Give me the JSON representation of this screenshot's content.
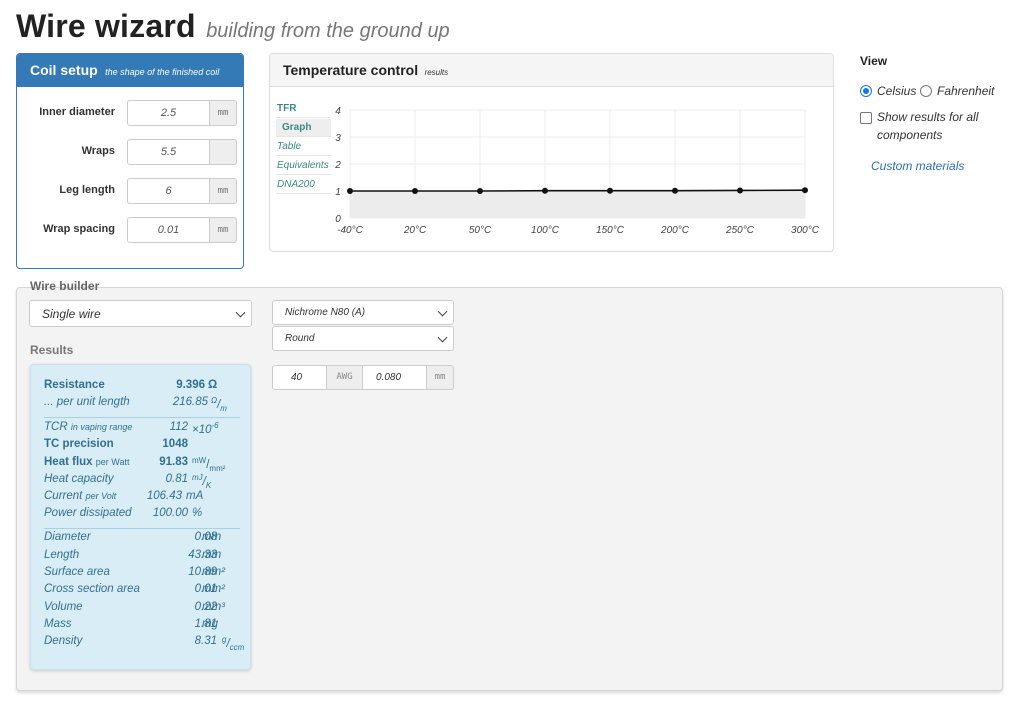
{
  "header": {
    "title": "Wire wizard",
    "subtitle": "building from the ground up"
  },
  "coil_setup": {
    "title": "Coil setup",
    "subtitle": "the shape of the finished coil",
    "fields": [
      {
        "label": "Inner diameter",
        "value": "2.5",
        "unit": "mm"
      },
      {
        "label": "Wraps",
        "value": "5.5",
        "unit": ""
      },
      {
        "label": "Leg length",
        "value": "6",
        "unit": "mm"
      },
      {
        "label": "Wrap spacing",
        "value": "0.01",
        "unit": "mm"
      }
    ]
  },
  "temperature_control": {
    "title": "Temperature control",
    "subtitle": "results",
    "tabs": [
      "TFR",
      "Graph",
      "Table",
      "Equivalents",
      "DNA200"
    ],
    "active_tab": "Graph",
    "line_color": "#111111",
    "fill_color": "#ececec"
  },
  "chart_data": {
    "type": "line",
    "categories": [
      "-40°C",
      "20°C",
      "50°C",
      "100°C",
      "150°C",
      "200°C",
      "250°C",
      "300°C"
    ],
    "values": [
      1.0,
      1.0,
      1.0,
      1.01,
      1.01,
      1.01,
      1.02,
      1.03
    ],
    "yticks": [
      "0",
      "1",
      "2",
      "3",
      "4"
    ],
    "ylim": [
      0,
      4
    ],
    "grid": true
  },
  "view": {
    "title": "View",
    "unit_options": [
      "Celsius",
      "Fahrenheit"
    ],
    "selected_unit": "Celsius",
    "show_all_label_line1": "Show results for all",
    "show_all_label_line2": "components",
    "show_all_checked": false,
    "custom_materials": "Custom materials"
  },
  "wire_builder": {
    "title": "Wire builder",
    "wire_type": "Single wire",
    "material": "Nichrome N80 (A)",
    "profile": "Round",
    "gauge": "40",
    "gauge_unit": "AWG",
    "diameter": "0.080",
    "diameter_unit": "mm"
  },
  "results": {
    "label": "Results",
    "accent_color": "#31708f",
    "background_color": "#d9edf7",
    "resistance_label": "Resistance",
    "resistance_value": "9.396",
    "resistance_unit": "Ω",
    "per_length_label": "... per unit length",
    "per_length_value": "216.85",
    "per_length_unit_num": "Ω",
    "per_length_unit_den": "m",
    "tcr_label": "TCR",
    "tcr_sub": "in vaping range",
    "tcr_value": "112",
    "tcr_unit": "×10",
    "tcr_exp": "-6",
    "tc_precision_label": "TC precision",
    "tc_precision_value": "1048",
    "heat_flux_label": "Heat flux",
    "heat_flux_sub": "per Watt",
    "heat_flux_value": "91.83",
    "heat_flux_unit_num": "mW",
    "heat_flux_unit_den": "mm²",
    "heat_capacity_label": "Heat capacity",
    "heat_capacity_value": "0.81",
    "heat_capacity_unit_num": "mJ",
    "heat_capacity_unit_den": "K",
    "current_label": "Current",
    "current_sub": "per Volt",
    "current_value": "106.43",
    "current_unit": "mA",
    "power_label": "Power dissipated",
    "power_value": "100.00",
    "power_unit": "%",
    "geometry": [
      {
        "label": "Diameter",
        "value": "0.08",
        "unit": "mm"
      },
      {
        "label": "Length",
        "value": "43.33",
        "unit": "mm"
      },
      {
        "label": "Surface area",
        "value": "10.89",
        "unit": "mm²"
      },
      {
        "label": "Cross section area",
        "value": "0.01",
        "unit": "mm²"
      },
      {
        "label": "Volume",
        "value": "0.22",
        "unit": "mm³"
      },
      {
        "label": "Mass",
        "value": "1.81",
        "unit": "mg"
      }
    ],
    "density_label": "Density",
    "density_value": "8.31",
    "density_unit_num": "g",
    "density_unit_den": "ccm"
  }
}
